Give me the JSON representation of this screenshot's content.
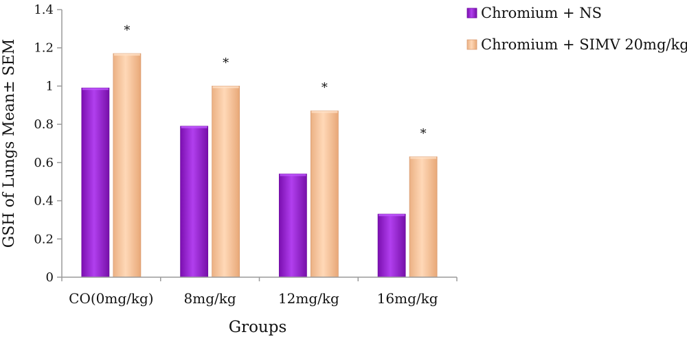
{
  "chart_data": {
    "type": "bar",
    "categories": [
      "CO(0mg/kg)",
      "8mg/kg",
      "12mg/kg",
      "16mg/kg"
    ],
    "series": [
      {
        "name": "Chromium + NS",
        "values": [
          0.99,
          0.79,
          0.54,
          0.33
        ],
        "color": "#9a20d8"
      },
      {
        "name": "Chromium + SIMV 20mg/kg",
        "values": [
          1.17,
          1.0,
          0.87,
          0.63
        ],
        "color": "#f6bf94"
      }
    ],
    "annotations": [
      {
        "category": "CO(0mg/kg)",
        "series": 1,
        "text": "*"
      },
      {
        "category": "8mg/kg",
        "series": 1,
        "text": "*"
      },
      {
        "category": "12mg/kg",
        "series": 1,
        "text": "*"
      },
      {
        "category": "16mg/kg",
        "series": 1,
        "text": "*"
      }
    ],
    "xlabel": "Groups",
    "ylabel": "GSH of Lungs Mean± SEM",
    "ylim": [
      0,
      1.4
    ],
    "yticks": [
      "0",
      "0.2",
      "0.4",
      "0.6",
      "0.8",
      "1",
      "1.2",
      "1.4"
    ],
    "grid": false,
    "legend": "top-right"
  }
}
